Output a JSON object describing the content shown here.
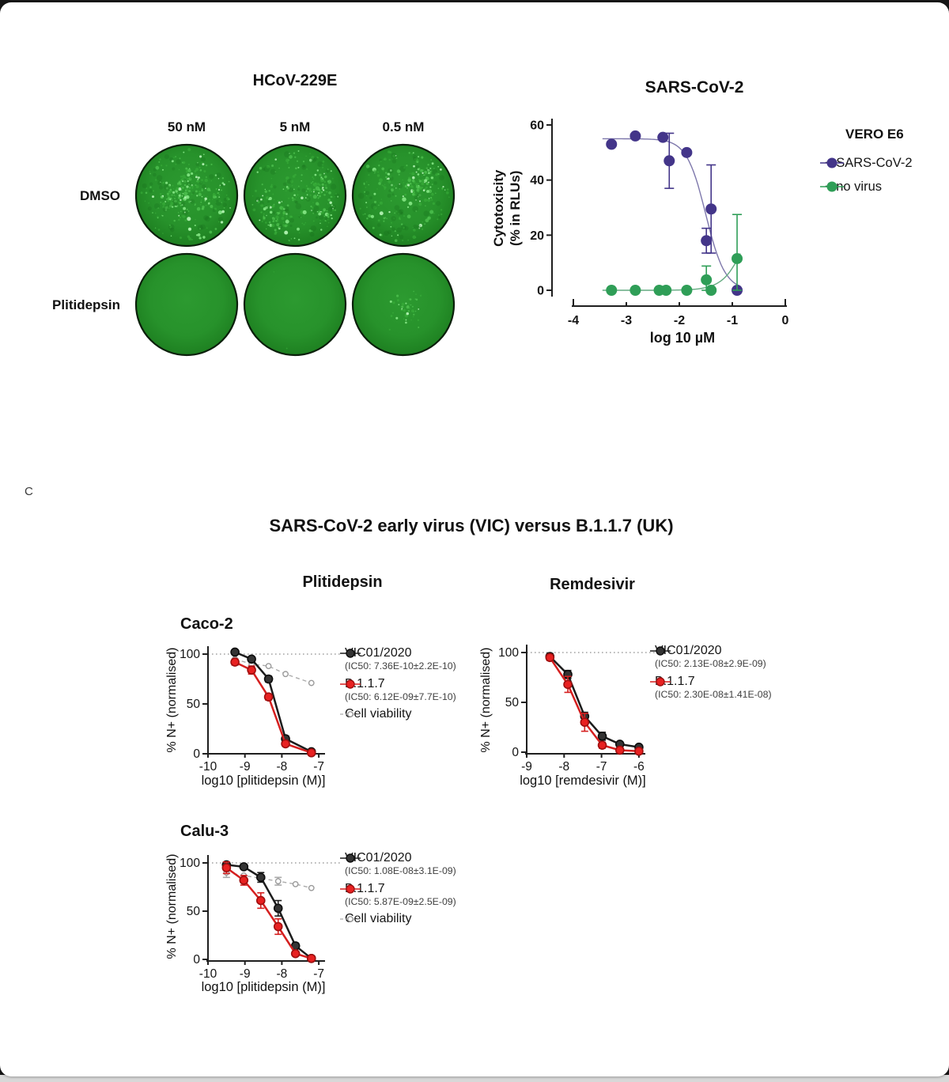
{
  "page": {
    "background_color": "#161616",
    "card_color": "#ffffff",
    "bottom_strip_color": "#d8d8d8"
  },
  "panel_a": {
    "title": "HCoV-229E",
    "column_labels": [
      "50 nM",
      "5 nM",
      "0.5 nM"
    ],
    "row_labels": [
      "DMSO",
      "Plitidepsin"
    ],
    "dish_colors": {
      "base": "#27922b",
      "center": "#2c9a30",
      "edge": "#176d1a",
      "rim": "#0b1f0b",
      "speckle_bright": "#b9f7b9"
    },
    "dishes": [
      {
        "row": "DMSO",
        "column": "50 nM",
        "speckles": 290
      },
      {
        "row": "DMSO",
        "column": "5 nM",
        "speckles": 290
      },
      {
        "row": "DMSO",
        "column": "0.5 nM",
        "speckles": 265
      },
      {
        "row": "Plitidepsin",
        "column": "50 nM",
        "speckles": 0
      },
      {
        "row": "Plitidepsin",
        "column": "5 nM",
        "speckles": 2
      },
      {
        "row": "Plitidepsin",
        "column": "0.5 nM",
        "speckles": 45
      }
    ]
  },
  "panel_c": {
    "label": "C",
    "title": "SARS-CoV-2 early virus (VIC) versus B.1.1.7 (UK)",
    "column_headers": [
      "Plitidepsin",
      "Remdesivir"
    ]
  },
  "chart_data": [
    {
      "id": "vero",
      "type": "scatter",
      "title": "SARS-CoV-2",
      "xlabel": "log 10 µM",
      "ylabel": "Cytotoxicity\n(% in RLUs)",
      "legend_title": "VERO E6",
      "xlim": [
        -4,
        0
      ],
      "ylim": [
        0,
        60
      ],
      "xticks": [
        -4,
        -3,
        -2,
        -1,
        0
      ],
      "yticks": [
        0,
        20,
        40,
        60
      ],
      "grid": false,
      "legend_position": "right",
      "series": [
        {
          "name": "+ SARS-CoV-2",
          "color": "#433589",
          "marker_fill": "#433589",
          "marker": "filled",
          "curve_color": "#7d77ab",
          "fit": {
            "top": 55,
            "bottom": 0,
            "ec50": -1.5,
            "hill": 2.4
          },
          "points": [
            {
              "x": -3.28,
              "y": 53
            },
            {
              "x": -2.83,
              "y": 56
            },
            {
              "x": -2.31,
              "y": 55.5
            },
            {
              "x": -2.19,
              "y": 47,
              "err": 10
            },
            {
              "x": -1.86,
              "y": 50
            },
            {
              "x": -1.49,
              "y": 18,
              "err": 4.5
            },
            {
              "x": -1.4,
              "y": 29.5,
              "err": 16
            },
            {
              "x": -0.91,
              "y": 0
            }
          ]
        },
        {
          "name": "+ no virus",
          "color": "#2f9e57",
          "marker_fill": "#2f9e57",
          "marker": "filled",
          "curve_color": "#63aa80",
          "fit": {
            "top": 40,
            "bottom": 0,
            "ec50": -0.7,
            "hill": -2
          },
          "points": [
            {
              "x": -3.28,
              "y": 0
            },
            {
              "x": -2.83,
              "y": 0
            },
            {
              "x": -2.38,
              "y": 0
            },
            {
              "x": -2.25,
              "y": 0
            },
            {
              "x": -1.86,
              "y": 0
            },
            {
              "x": -1.49,
              "y": 3.8,
              "err": 5
            },
            {
              "x": -1.4,
              "y": 0
            },
            {
              "x": -0.91,
              "y": 11.5,
              "err": 16
            }
          ]
        }
      ]
    },
    {
      "id": "caco2",
      "type": "line",
      "title": "Caco-2",
      "xlabel": "log10 [plitidepsin (M)]",
      "ylabel": "% N+ (normalised)",
      "xlim": [
        -10,
        -7
      ],
      "ylim": [
        0,
        110
      ],
      "xticks": [
        -10,
        -9,
        -8,
        -7
      ],
      "yticks": [
        0,
        50,
        100
      ],
      "refline": 100,
      "series": [
        {
          "name": "VIC01/2020",
          "ic50": "(IC50: 7.36E-10±2.2E-10)",
          "color": "#1c1c1c",
          "marker_fill": "#343434",
          "marker_stroke": "#0d0d0d",
          "marker": "filled",
          "line": "solid",
          "points": [
            {
              "x": -9.27,
              "y": 102
            },
            {
              "x": -8.82,
              "y": 95
            },
            {
              "x": -8.36,
              "y": 75,
              "err": 3
            },
            {
              "x": -7.9,
              "y": 15,
              "err": 3
            },
            {
              "x": -7.2,
              "y": 2
            }
          ]
        },
        {
          "name": "B.1.1.7",
          "ic50": "(IC50: 6.12E-09±7.7E-10)",
          "color": "#d51f1f",
          "marker_fill": "#e82121",
          "marker_stroke": "#9e0f0f",
          "marker": "filled",
          "line": "solid",
          "points": [
            {
              "x": -9.27,
              "y": 92,
              "err": 3
            },
            {
              "x": -8.82,
              "y": 84,
              "err": 4
            },
            {
              "x": -8.36,
              "y": 57,
              "err": 3
            },
            {
              "x": -7.9,
              "y": 10
            },
            {
              "x": -7.2,
              "y": 1
            }
          ]
        },
        {
          "name": "Cell viability",
          "color": "#ababab",
          "marker_fill": "#ffffff",
          "marker_stroke": "#9a9a9a",
          "marker": "open",
          "line": "dashed",
          "points": [
            {
              "x": -9.27,
              "y": 95
            },
            {
              "x": -8.82,
              "y": 90
            },
            {
              "x": -8.36,
              "y": 88
            },
            {
              "x": -7.9,
              "y": 80
            },
            {
              "x": -7.2,
              "y": 71
            }
          ]
        }
      ]
    },
    {
      "id": "remdesivir",
      "type": "line",
      "title": "",
      "xlabel": "log10 [remdesivir (M)]",
      "ylabel": "% N+ (normalised)",
      "xlim": [
        -9,
        -6
      ],
      "ylim": [
        0,
        110
      ],
      "xticks": [
        -9,
        -8,
        -7,
        -6
      ],
      "yticks": [
        0,
        50,
        100
      ],
      "refline": 100,
      "series": [
        {
          "name": "VIC01/2020",
          "ic50": "(IC50: 2.13E-08±2.9E-09)",
          "color": "#1c1c1c",
          "marker_fill": "#343434",
          "marker_stroke": "#0d0d0d",
          "marker": "filled",
          "line": "solid",
          "points": [
            {
              "x": -8.38,
              "y": 96,
              "err": 3
            },
            {
              "x": -7.9,
              "y": 78,
              "err": 4
            },
            {
              "x": -7.45,
              "y": 36,
              "err": 4
            },
            {
              "x": -6.98,
              "y": 16,
              "err": 4
            },
            {
              "x": -6.51,
              "y": 8
            },
            {
              "x": -6.0,
              "y": 5
            }
          ]
        },
        {
          "name": "B.1.1.7",
          "ic50": "(IC50: 2.30E-08±1.41E-08)",
          "color": "#d51f1f",
          "marker_fill": "#e82121",
          "marker_stroke": "#9e0f0f",
          "marker": "filled",
          "line": "solid",
          "points": [
            {
              "x": -8.38,
              "y": 95,
              "err": 3
            },
            {
              "x": -7.9,
              "y": 68,
              "err": 8
            },
            {
              "x": -7.45,
              "y": 30,
              "err": 9
            },
            {
              "x": -6.98,
              "y": 7,
              "err": 3
            },
            {
              "x": -6.51,
              "y": 2
            },
            {
              "x": -6.0,
              "y": 1
            }
          ]
        }
      ]
    },
    {
      "id": "calu3",
      "type": "line",
      "title": "Calu-3",
      "xlabel": "log10 [plitidepsin (M)]",
      "ylabel": "% N+ (normalised)",
      "xlim": [
        -10,
        -7
      ],
      "ylim": [
        0,
        110
      ],
      "xticks": [
        -10,
        -9,
        -8,
        -7
      ],
      "yticks": [
        0,
        50,
        100
      ],
      "refline": 100,
      "series": [
        {
          "name": "VIC01/2020",
          "ic50": "(IC50: 1.08E-08±3.1E-09)",
          "color": "#1c1c1c",
          "marker_fill": "#343434",
          "marker_stroke": "#0d0d0d",
          "marker": "filled",
          "line": "solid",
          "points": [
            {
              "x": -9.5,
              "y": 98,
              "err": 3
            },
            {
              "x": -9.03,
              "y": 96
            },
            {
              "x": -8.57,
              "y": 85,
              "err": 5
            },
            {
              "x": -8.1,
              "y": 53,
              "err": 8
            },
            {
              "x": -7.63,
              "y": 14,
              "err": 3
            },
            {
              "x": -7.2,
              "y": 1
            }
          ]
        },
        {
          "name": "B.1.1.7",
          "ic50": "(IC50: 5.87E-09±2.5E-09)",
          "color": "#d51f1f",
          "marker_fill": "#e82121",
          "marker_stroke": "#9e0f0f",
          "marker": "filled",
          "line": "solid",
          "points": [
            {
              "x": -9.5,
              "y": 95,
              "err": 6
            },
            {
              "x": -9.03,
              "y": 82,
              "err": 5
            },
            {
              "x": -8.57,
              "y": 61,
              "err": 8
            },
            {
              "x": -8.1,
              "y": 34,
              "err": 8
            },
            {
              "x": -7.63,
              "y": 6,
              "err": 2
            },
            {
              "x": -7.2,
              "y": 1
            }
          ]
        },
        {
          "name": "Cell viability",
          "color": "#ababab",
          "marker_fill": "#ffffff",
          "marker_stroke": "#9a9a9a",
          "marker": "open",
          "line": "dashed",
          "points": [
            {
              "x": -9.5,
              "y": 90,
              "err": 5
            },
            {
              "x": -9.03,
              "y": 87
            },
            {
              "x": -8.57,
              "y": 84
            },
            {
              "x": -8.1,
              "y": 81,
              "err": 4
            },
            {
              "x": -7.63,
              "y": 78
            },
            {
              "x": -7.2,
              "y": 74
            }
          ]
        }
      ]
    }
  ]
}
